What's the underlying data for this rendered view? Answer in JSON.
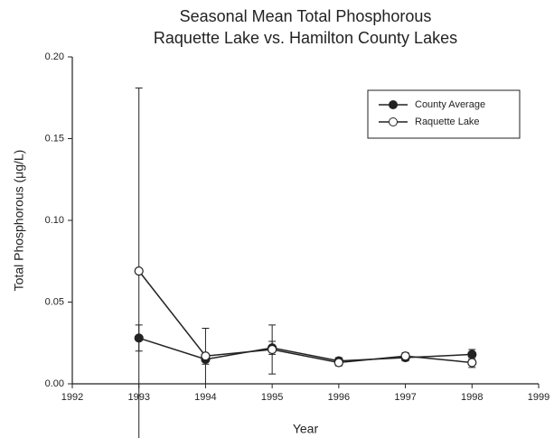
{
  "chart_data": {
    "type": "line",
    "title": "Seasonal Mean Total Phosphorous",
    "subtitle": "Raquette Lake vs. Hamilton County Lakes",
    "x_label": "Year",
    "y_label": "Total Phosphorous (μg/L)",
    "x": [
      1993,
      1994,
      1995,
      1996,
      1997,
      1998
    ],
    "series": [
      {
        "name": "County Average",
        "color": "#222222",
        "marker": "filled",
        "values": [
          0.028,
          0.015,
          0.022,
          0.014,
          0.016,
          0.018
        ],
        "errors": [
          0.008,
          0.003,
          0.004,
          0.002,
          0.002,
          0.003
        ]
      },
      {
        "name": "Raquette Lake",
        "color": "#222222",
        "marker": "open",
        "values": [
          0.069,
          0.017,
          0.021,
          0.013,
          0.017,
          0.013
        ],
        "errors": [
          0.112,
          0.017,
          0.015,
          0.002,
          0.002,
          0.003
        ]
      }
    ],
    "xlim": [
      1992,
      1999
    ],
    "xticks": [
      1992,
      1993,
      1994,
      1995,
      1996,
      1997,
      1998,
      1999
    ],
    "ylim": [
      0,
      0.2
    ],
    "yticks": [
      {
        "value": 0,
        "label": "0.00"
      },
      {
        "value": 0.05,
        "label": "0.05"
      },
      {
        "value": 0.1,
        "label": "0.10"
      },
      {
        "value": 0.15,
        "label": "0.15"
      },
      {
        "value": 0.2,
        "label": "0.20"
      }
    ],
    "legend": "upper right"
  }
}
